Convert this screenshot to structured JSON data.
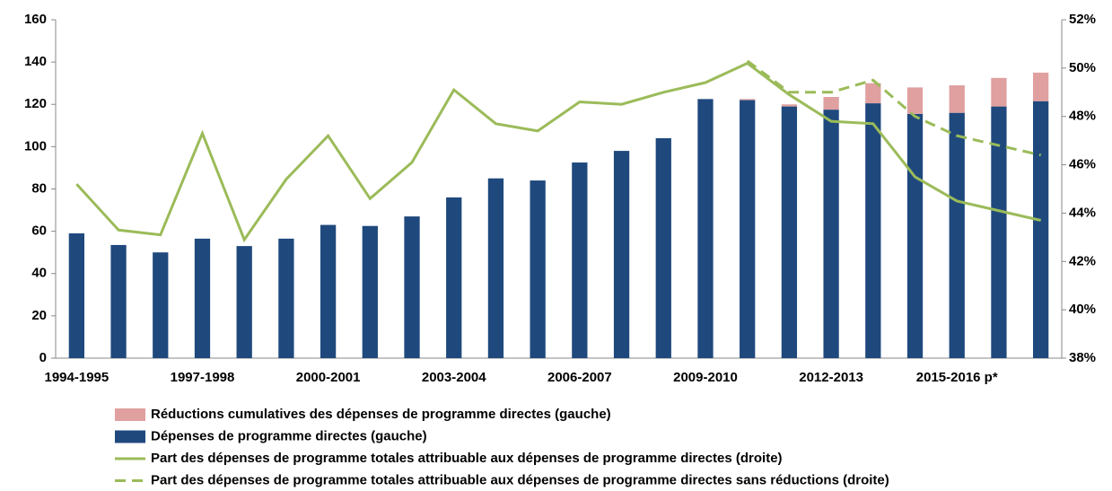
{
  "chart_data": {
    "type": "bar_line",
    "categories": [
      "1994-1995",
      null,
      null,
      "1997-1998",
      null,
      null,
      "2000-2001",
      null,
      null,
      "2003-2004",
      null,
      null,
      "2006-2007",
      null,
      null,
      "2009-2010",
      null,
      null,
      "2012-2013",
      null,
      null,
      "2015-2016 p*",
      null,
      null
    ],
    "series": [
      {
        "name": "Réductions cumulatives des dépenses de programme directes (gauche)",
        "color": "#e0a0a0",
        "kind": "bar",
        "stack": "top",
        "values": [
          0,
          0,
          0,
          0,
          0,
          0,
          0,
          0,
          0,
          0,
          0,
          0,
          0,
          0,
          0,
          0,
          0.5,
          1,
          6,
          9.5,
          12.5,
          13,
          13.5,
          13.5
        ]
      },
      {
        "name": "Dépenses de programme directes (gauche)",
        "color": "#1f497d",
        "kind": "bar",
        "stack": "base",
        "values": [
          59,
          53.5,
          50,
          56.5,
          53,
          56.5,
          63,
          62.5,
          67,
          76,
          85,
          84,
          92.5,
          98,
          104,
          122.5,
          122,
          119,
          117.5,
          120.5,
          115.5,
          116,
          119,
          121.5
        ]
      },
      {
        "name": "Part des dépenses de programme totales attribuable aux dépenses de programme directes (droite)",
        "color": "#9bbb59",
        "kind": "line",
        "dash": false,
        "axis": "y2",
        "values": [
          45.2,
          43.3,
          43.1,
          47.3,
          42.9,
          45.4,
          47.2,
          44.6,
          46.1,
          49.1,
          47.7,
          47.4,
          48.6,
          48.5,
          49.0,
          49.4,
          50.2,
          48.9,
          47.8,
          47.7,
          45.5,
          44.5,
          44.1,
          43.7
        ]
      },
      {
        "name": "Part des dépenses de programme totales attribuable aux dépenses de programme directes sans réductions (droite)",
        "color": "#9bbb59",
        "kind": "line",
        "dash": true,
        "axis": "y2",
        "values": [
          null,
          null,
          null,
          null,
          null,
          null,
          null,
          null,
          null,
          null,
          null,
          null,
          null,
          null,
          null,
          null,
          50.3,
          49.0,
          49.0,
          49.5,
          48.0,
          47.2,
          46.8,
          46.4
        ]
      }
    ],
    "ylim": [
      0,
      160
    ],
    "yticks": [
      0,
      20,
      40,
      60,
      80,
      100,
      120,
      140,
      160
    ],
    "y2lim": [
      38,
      52
    ],
    "y2ticks": [
      {
        "value": 38,
        "label": "38%"
      },
      {
        "value": 40,
        "label": "40%"
      },
      {
        "value": 42,
        "label": "42%"
      },
      {
        "value": 44,
        "label": "44%"
      },
      {
        "value": 46,
        "label": "46%"
      },
      {
        "value": 48,
        "label": "48%"
      },
      {
        "value": 50,
        "label": "50%"
      },
      {
        "value": 52,
        "label": "52%"
      }
    ],
    "grid": false,
    "legend": "bottom"
  }
}
